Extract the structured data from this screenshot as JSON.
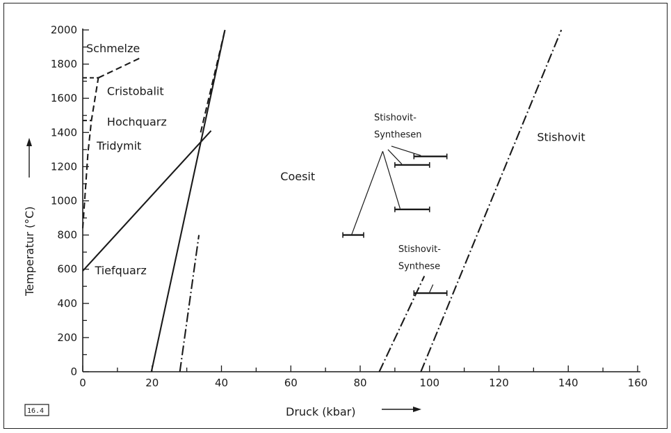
{
  "chart_data": {
    "type": "line",
    "title": "",
    "xlabel": "Druck (kbar)",
    "ylabel": "Temperatur (°C)",
    "xlim": [
      0,
      160
    ],
    "ylim": [
      0,
      2000
    ],
    "x_ticks": [
      0,
      20,
      40,
      60,
      80,
      100,
      120,
      140,
      160
    ],
    "y_ticks": [
      0,
      200,
      400,
      600,
      800,
      1000,
      1200,
      1400,
      1600,
      1800,
      2000
    ],
    "x_tick_labels": [
      "0",
      "20",
      "40",
      "60",
      "80",
      "100",
      "120",
      "140",
      "160"
    ],
    "y_tick_labels": [
      "0",
      "200",
      "400",
      "600",
      "800",
      "1000",
      "1200",
      "1400",
      "1600",
      "1800",
      "2000"
    ],
    "grid": false,
    "figure_id": "16.4",
    "series": [
      {
        "style": "solid",
        "points": [
          [
            0,
            590
          ],
          [
            37,
            1410
          ]
        ]
      },
      {
        "style": "solid",
        "points": [
          [
            19.8,
            0
          ],
          [
            41,
            2000
          ]
        ]
      },
      {
        "style": "dashed",
        "points": [
          [
            0,
            840
          ],
          [
            1.5,
            1280
          ],
          [
            2.5,
            1470
          ],
          [
            4.5,
            1720
          ]
        ]
      },
      {
        "style": "dashed",
        "points": [
          [
            4.5,
            1720
          ],
          [
            17,
            1840
          ]
        ]
      },
      {
        "style": "dashed",
        "points": [
          [
            34,
            1400
          ],
          [
            41,
            2000
          ]
        ]
      },
      {
        "style": "dashdot",
        "points": [
          [
            28,
            0
          ],
          [
            33.5,
            800
          ]
        ]
      },
      {
        "style": "dashdot",
        "points": [
          [
            85.5,
            0
          ],
          [
            98.5,
            560
          ]
        ]
      },
      {
        "style": "dashdot",
        "points": [
          [
            97.5,
            0
          ],
          [
            138,
            2000
          ]
        ]
      }
    ],
    "phase_boundary_marks": [
      {
        "y": 1720,
        "x0": 0,
        "x1": 4.5
      },
      {
        "y": 1470,
        "x0": 0,
        "x1": 2.5
      }
    ],
    "experiment_ranges": [
      {
        "y": 1260,
        "x0": 95.5,
        "x1": 105
      },
      {
        "y": 1210,
        "x0": 90,
        "x1": 100
      },
      {
        "y": 950,
        "x0": 90,
        "x1": 100
      },
      {
        "y": 800,
        "x0": 75,
        "x1": 81
      },
      {
        "y": 460,
        "x0": 95.5,
        "x1": 105
      }
    ],
    "annotations": [
      {
        "text": "Schmelze",
        "x": 1,
        "y": 1870,
        "size": "region"
      },
      {
        "text": "Cristobalit",
        "x": 7,
        "y": 1620,
        "size": "region"
      },
      {
        "text": "Hochquarz",
        "x": 7,
        "y": 1440,
        "size": "region"
      },
      {
        "text": "Tridymit",
        "x": 4,
        "y": 1300,
        "size": "region"
      },
      {
        "text": "Tiefquarz",
        "x": 3.5,
        "y": 570,
        "size": "region"
      },
      {
        "text": "Coesit",
        "x": 57,
        "y": 1120,
        "size": "region"
      },
      {
        "text": "Stishovit",
        "x": 131,
        "y": 1350,
        "size": "region"
      },
      {
        "text": "Stishovit-",
        "x": 84,
        "y": 1470,
        "size": "small"
      },
      {
        "text": "Synthesen",
        "x": 84,
        "y": 1370,
        "size": "small"
      },
      {
        "text": "Stishovit-",
        "x": 91,
        "y": 700,
        "size": "small"
      },
      {
        "text": "Synthese",
        "x": 91,
        "y": 600,
        "size": "small"
      }
    ],
    "leader_lines": [
      [
        [
          86.5,
          1290
        ],
        [
          77.5,
          800
        ]
      ],
      [
        [
          86.5,
          1290
        ],
        [
          91.5,
          955
        ]
      ],
      [
        [
          88,
          1300
        ],
        [
          92,
          1215
        ]
      ],
      [
        [
          89,
          1320
        ],
        [
          97.5,
          1265
        ]
      ],
      [
        [
          101,
          510
        ],
        [
          100,
          465
        ]
      ]
    ]
  }
}
